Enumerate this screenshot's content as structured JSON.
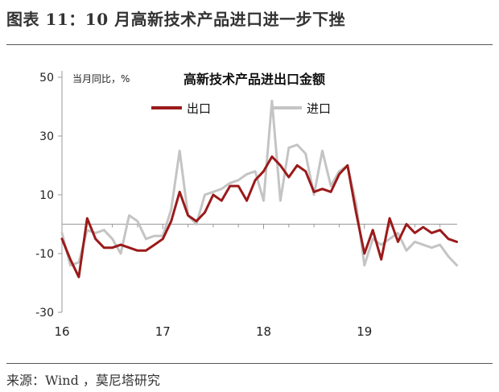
{
  "figure_title": "图表 11：10 月高新技术产品进口进一步下挫",
  "source_note": "来源：Wind ，莫尼塔研究",
  "colors": {
    "export": "#9b1a1a",
    "import": "#c4c4c4",
    "zero_line": "#999999"
  },
  "chart_data": {
    "type": "line",
    "title": "高新技术产品进出口金额",
    "ylabel": "当月同比，%",
    "ylim": [
      -30,
      50
    ],
    "yticks": [
      -30,
      -10,
      10,
      30,
      50
    ],
    "xlim": [
      2016.0,
      2019.92
    ],
    "xticks": [
      {
        "value": 2016.0,
        "label": "16"
      },
      {
        "value": 2017.0,
        "label": "17"
      },
      {
        "value": 2018.0,
        "label": "18"
      },
      {
        "value": 2019.0,
        "label": "19"
      }
    ],
    "grid": false,
    "legend": "top-center",
    "series": [
      {
        "name": "出口",
        "x": [
          2016.0,
          2016.083,
          2016.167,
          2016.25,
          2016.333,
          2016.417,
          2016.5,
          2016.583,
          2016.667,
          2016.75,
          2016.833,
          2016.917,
          2017.0,
          2017.083,
          2017.167,
          2017.25,
          2017.333,
          2017.417,
          2017.5,
          2017.583,
          2017.667,
          2017.75,
          2017.833,
          2017.917,
          2018.0,
          2018.083,
          2018.167,
          2018.25,
          2018.333,
          2018.417,
          2018.5,
          2018.583,
          2018.667,
          2018.75,
          2018.833,
          2018.917,
          2019.0,
          2019.083,
          2019.167,
          2019.25,
          2019.333,
          2019.417,
          2019.5,
          2019.583,
          2019.667,
          2019.75,
          2019.833,
          2019.917
        ],
        "values": [
          -5,
          -12,
          -18,
          2,
          -5,
          -8,
          -8,
          -7,
          -8,
          -9,
          -9,
          -7,
          -5,
          1,
          11,
          3,
          1,
          4,
          10,
          8,
          13,
          13,
          8,
          15,
          18,
          23,
          20,
          16,
          20,
          18,
          11,
          12,
          11,
          17,
          20,
          4,
          -10,
          -2,
          -12,
          2,
          -6,
          0,
          -3,
          -1,
          -3,
          -2,
          -5,
          -6
        ]
      },
      {
        "name": "进口",
        "x": [
          2016.0,
          2016.083,
          2016.167,
          2016.25,
          2016.333,
          2016.417,
          2016.5,
          2016.583,
          2016.667,
          2016.75,
          2016.833,
          2016.917,
          2017.0,
          2017.083,
          2017.167,
          2017.25,
          2017.333,
          2017.417,
          2017.5,
          2017.583,
          2017.667,
          2017.75,
          2017.833,
          2017.917,
          2018.0,
          2018.083,
          2018.167,
          2018.25,
          2018.333,
          2018.417,
          2018.5,
          2018.583,
          2018.667,
          2018.75,
          2018.833,
          2018.917,
          2019.0,
          2019.083,
          2019.167,
          2019.25,
          2019.333,
          2019.417,
          2019.5,
          2019.583,
          2019.667,
          2019.75,
          2019.833,
          2019.917
        ],
        "values": [
          -3,
          -14,
          -13,
          -2,
          -3,
          -2,
          -5,
          -10,
          3,
          1,
          -5,
          -4,
          -4,
          5,
          25,
          3,
          0,
          10,
          11,
          12,
          14,
          15,
          17,
          18,
          8,
          42,
          8,
          26,
          27,
          24,
          10,
          25,
          13,
          18,
          20,
          7,
          -14,
          -5,
          -7,
          -5,
          -3,
          -9,
          -6,
          -7,
          -8,
          -7,
          -11,
          -14
        ]
      }
    ]
  }
}
